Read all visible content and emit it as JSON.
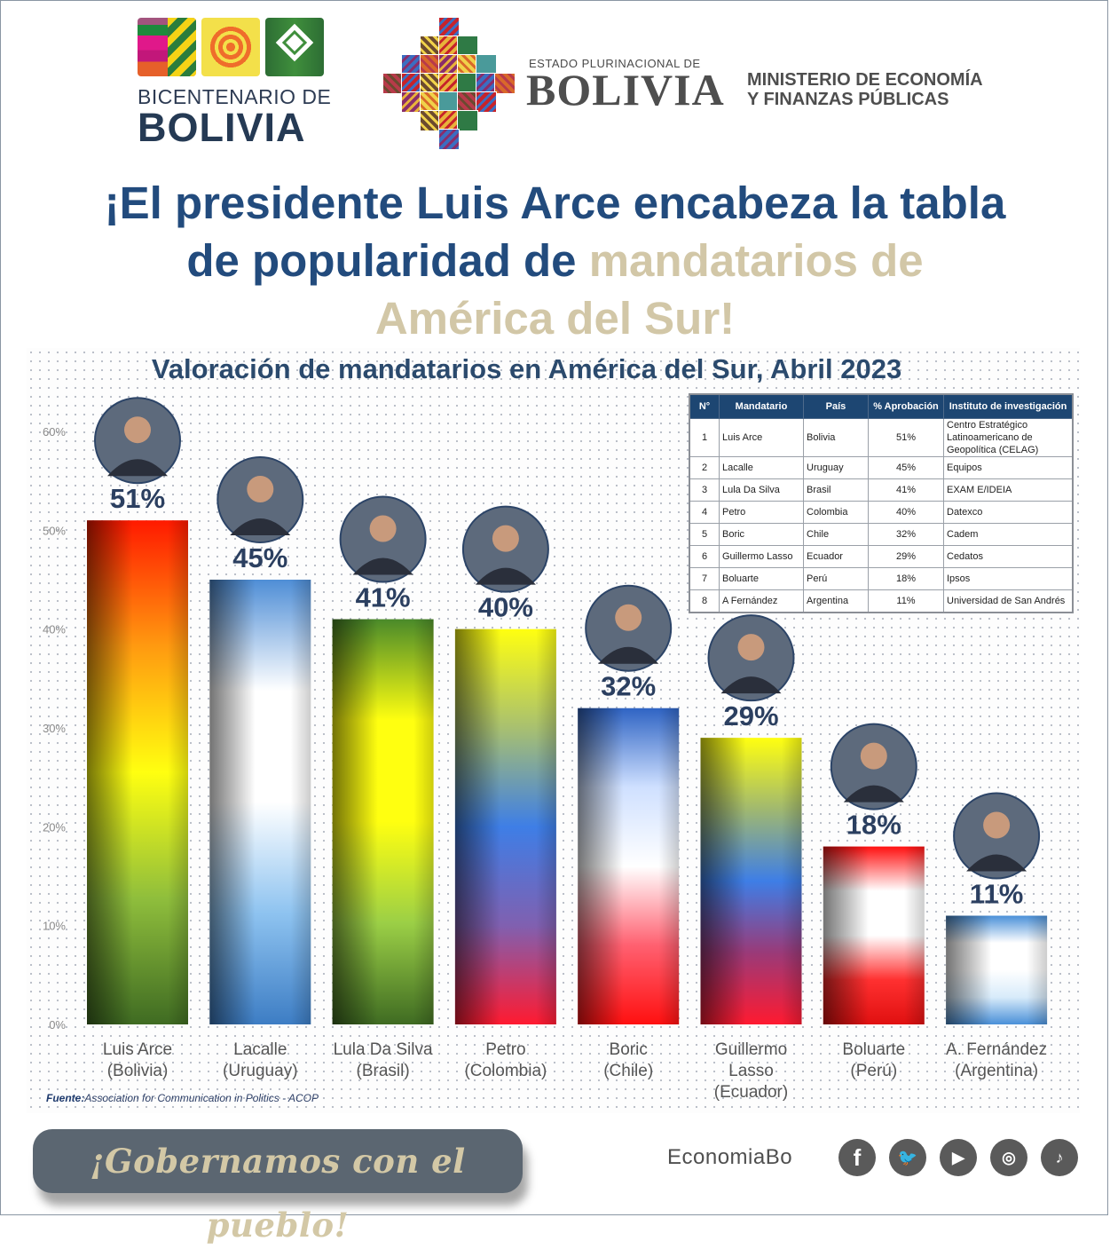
{
  "header": {
    "bicentenario": {
      "line1": "BICENTENARIO DE",
      "line2": "BOLIVIA"
    },
    "estado": {
      "line1": "ESTADO PLURINACIONAL DE",
      "line2": "BOLIVIA"
    },
    "ministerio": {
      "line1": "MINISTERIO DE ECONOMÍA",
      "line2": "Y FINANZAS PÚBLICAS"
    }
  },
  "headline": {
    "part1": "¡El presidente Luis Arce encabeza la tabla",
    "part2": "de popularidad de ",
    "part3": "mandatarios de",
    "part4": "América del Sur!",
    "colors": {
      "primary": "#224b7d",
      "accent": "#d2c7a7"
    }
  },
  "chart_data": {
    "type": "bar",
    "title": "Valoración de mandatarios en América del Sur, Abril 2023",
    "xlabel": "",
    "ylabel": "",
    "ylim": [
      0,
      60
    ],
    "yticks": [
      "0%",
      "10%",
      "20%",
      "30%",
      "40%",
      "50%",
      "60%"
    ],
    "grid": false,
    "categories": [
      [
        "Luis Arce",
        "(Bolivia)"
      ],
      [
        "Lacalle",
        "(Uruguay)"
      ],
      [
        "Lula Da Silva",
        "(Brasil)"
      ],
      [
        "Petro",
        "(Colombia)"
      ],
      [
        "Boric",
        "(Chile)"
      ],
      [
        "Guillermo",
        "Lasso",
        "(Ecuador)"
      ],
      [
        "Boluarte",
        "(Perú)"
      ],
      [
        "A. Fernández",
        "(Argentina)"
      ]
    ],
    "values": [
      51,
      45,
      41,
      40,
      32,
      29,
      18,
      11
    ],
    "data_labels": [
      "51%",
      "45%",
      "41%",
      "40%",
      "32%",
      "29%",
      "18%",
      "11%"
    ],
    "bar_flag_colors": [
      [
        "#ff1a00",
        "#ff9a10",
        "#ffff10",
        "#8fbe3c",
        "#3f6b22"
      ],
      [
        "#4f8ed6",
        "#ffffff",
        "#ffffff",
        "#8ec3f0",
        "#3d7dc4"
      ],
      [
        "#4a8a2a",
        "#ffff10",
        "#ffff10",
        "#9bcf46",
        "#3f6b22"
      ],
      [
        "#ffff10",
        "#a8c070",
        "#3e7ee6",
        "#8060b0",
        "#ff1a30"
      ],
      [
        "#2f64c4",
        "#cfe0ff",
        "#ffffff",
        "#ff6070",
        "#ff1010"
      ],
      [
        "#ffff10",
        "#a0b870",
        "#3e7ee6",
        "#9a3a78",
        "#ff1a30"
      ],
      [
        "#ff1010",
        "#ffffff",
        "#ffffff",
        "#ff3030",
        "#e01010"
      ],
      [
        "#4a90d8",
        "#ffffff",
        "#ffffff",
        "#d8ebfa",
        "#4a90d8"
      ]
    ],
    "photo_labels": [
      "Luis Arce",
      "Lacalle",
      "Lula Da Silva",
      "Petro",
      "Boric",
      "Guillermo Lasso",
      "Boluarte",
      "A. Fernández"
    ],
    "source_label": "Fuente:",
    "source_text": "Association for Communication in Politics - ACOP",
    "table": {
      "headers": [
        "N°",
        "Mandatario",
        "País",
        "% Aprobación",
        "Instituto de investigación"
      ],
      "rows": [
        [
          "1",
          "Luis Arce",
          "Bolivia",
          "51%",
          "Centro Estratégico Latinoamericano de Geopolítica (CELAG)"
        ],
        [
          "2",
          "Lacalle",
          "Uruguay",
          "45%",
          "Equipos"
        ],
        [
          "3",
          "Lula Da Silva",
          "Brasil",
          "41%",
          "EXAM E/IDEIA"
        ],
        [
          "4",
          "Petro",
          "Colombia",
          "40%",
          "Datexco"
        ],
        [
          "5",
          "Boric",
          "Chile",
          "32%",
          "Cadem"
        ],
        [
          "6",
          "Guillermo Lasso",
          "Ecuador",
          "29%",
          "Cedatos"
        ],
        [
          "7",
          "Boluarte",
          "Perú",
          "18%",
          "Ipsos"
        ],
        [
          "8",
          "A Fernández",
          "Argentina",
          "11%",
          "Universidad de San Andrés"
        ]
      ]
    }
  },
  "footer": {
    "slogan": "¡Gobernamos con el pueblo!",
    "handle": "EconomiaBo",
    "social": [
      {
        "icon": "facebook-icon",
        "glyph": "f"
      },
      {
        "icon": "twitter-icon",
        "glyph": "🐦"
      },
      {
        "icon": "youtube-icon",
        "glyph": "▶"
      },
      {
        "icon": "instagram-icon",
        "glyph": "◎"
      },
      {
        "icon": "tiktok-icon",
        "glyph": "♪"
      }
    ]
  }
}
